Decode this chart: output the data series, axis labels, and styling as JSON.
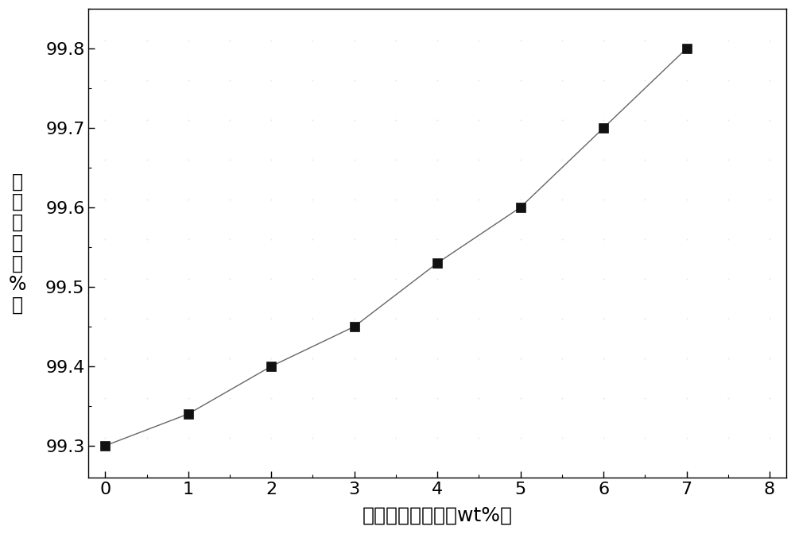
{
  "x": [
    0,
    1,
    2,
    3,
    4,
    5,
    6,
    7
  ],
  "y": [
    99.3,
    99.34,
    99.4,
    99.45,
    99.53,
    99.6,
    99.7,
    99.8
  ],
  "xlabel": "聚乙二醇的含量（wt%）",
  "ylabel_chars": [
    "凝",
    "胶",
    "含",
    "量",
    "（",
    "%",
    "）"
  ],
  "xlim": [
    -0.2,
    8.2
  ],
  "ylim": [
    99.26,
    99.85
  ],
  "xticks": [
    0,
    1,
    2,
    3,
    4,
    5,
    6,
    7,
    8
  ],
  "yticks": [
    99.3,
    99.4,
    99.5,
    99.6,
    99.7,
    99.8
  ],
  "line_color": "#666666",
  "marker_color": "#111111",
  "marker_size": 8,
  "line_width": 1.0,
  "background_color": "#ffffff",
  "xlabel_fontsize": 18,
  "ylabel_fontsize": 17,
  "tick_fontsize": 16
}
